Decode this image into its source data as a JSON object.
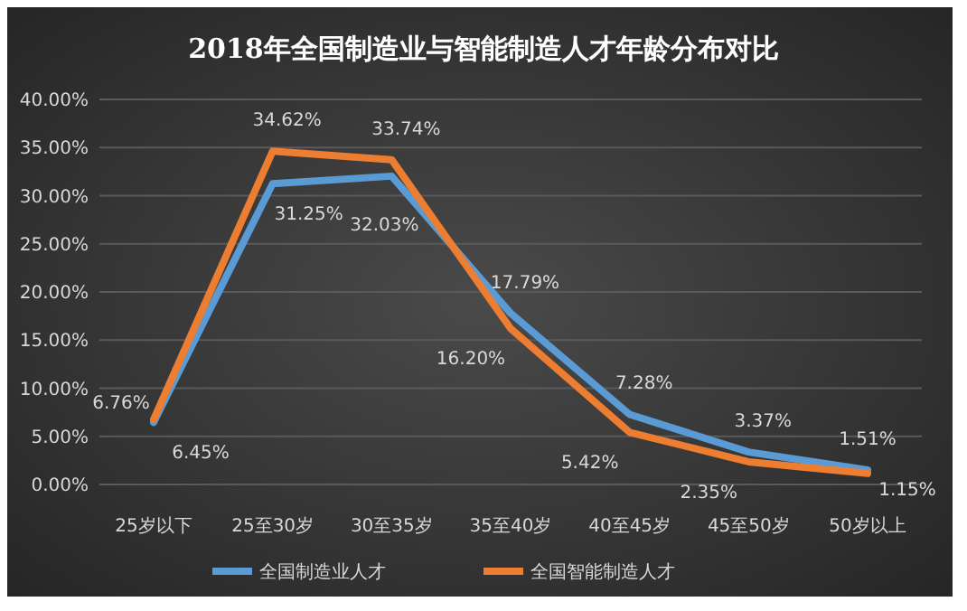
{
  "chart_data": {
    "type": "line",
    "title": "2018年全国制造业与智能制造人才年龄分布对比",
    "categories": [
      "25岁以下",
      "25至30岁",
      "30至35岁",
      "35至40岁",
      "40至45岁",
      "45至50岁",
      "50岁以上"
    ],
    "series": [
      {
        "name": "全国制造业人才",
        "color": "#5b9bd5",
        "values": [
          6.45,
          31.25,
          32.03,
          17.79,
          7.28,
          3.37,
          1.51
        ],
        "value_labels": [
          "6.45%",
          "31.25%",
          "32.03%",
          "17.79%",
          "7.28%",
          "3.37%",
          "1.51%"
        ]
      },
      {
        "name": "全国智能制造人才",
        "color": "#ed7d31",
        "values": [
          6.76,
          34.62,
          33.74,
          16.2,
          5.42,
          2.35,
          1.15
        ],
        "value_labels": [
          "6.76%",
          "34.62%",
          "33.74%",
          "16.20%",
          "5.42%",
          "2.35%",
          "1.15%"
        ]
      }
    ],
    "ylim": [
      0,
      40
    ],
    "yticks": [
      {
        "value": 0,
        "label": "0.00%"
      },
      {
        "value": 5,
        "label": "5.00%"
      },
      {
        "value": 10,
        "label": "10.00%"
      },
      {
        "value": 15,
        "label": "15.00%"
      },
      {
        "value": 20,
        "label": "20.00%"
      },
      {
        "value": 25,
        "label": "25.00%"
      },
      {
        "value": 30,
        "label": "30.00%"
      },
      {
        "value": 35,
        "label": "35.00%"
      },
      {
        "value": 40,
        "label": "40.00%"
      }
    ],
    "grid": "y",
    "legend": "bottom",
    "marker": "none",
    "line_style": "solid"
  }
}
